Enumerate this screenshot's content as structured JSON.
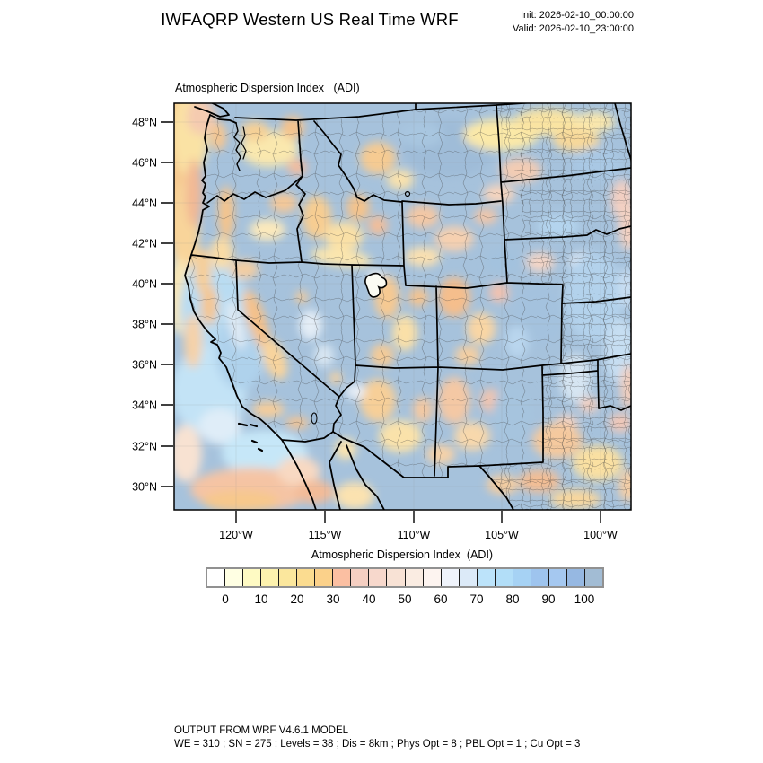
{
  "header": {
    "title": "IWFAQRP Western US Real Time WRF",
    "init_label": "Init: 2026-02-10_00:00:00",
    "valid_label": "Valid: 2026-02-10_23:00:00"
  },
  "map": {
    "subtitle": "Atmospheric Dispersion Index   (ADI)",
    "axes": {
      "lat": [
        "48°N",
        "46°N",
        "44°N",
        "42°N",
        "40°N",
        "38°N",
        "36°N",
        "34°N",
        "32°N",
        "30°N"
      ],
      "lon": [
        "120°W",
        "115°W",
        "110°W",
        "105°W",
        "100°W"
      ]
    }
  },
  "colorbar": {
    "title": "Atmospheric Dispersion Index  (ADI)",
    "labels": [
      "0",
      "10",
      "20",
      "30",
      "40",
      "50",
      "60",
      "70",
      "80",
      "90",
      "100"
    ],
    "colors": [
      "#FFFFFF",
      "#FFFFE3",
      "#FEFAC3",
      "#FDF2AE",
      "#FBE79D",
      "#FBDC90",
      "#FBD18A",
      "#FBBFA2",
      "#F5CFC2",
      "#F7D8CC",
      "#F8E2D5",
      "#FAECE2",
      "#FDF4F0",
      "#EFF3FB",
      "#DCEAF8",
      "#BCE3FA",
      "#B2DEF8",
      "#A6D2F4",
      "#9EC4EE",
      "#A5C8F0",
      "#96B8E2",
      "#A2BCD4"
    ]
  },
  "footer": {
    "line1": "OUTPUT FROM WRF V4.6.1 MODEL",
    "line2": "WE = 310 ; SN = 275 ; Levels = 38 ; Dis = 8km ; Phys Opt = 8 ; PBL Opt = 1 ; Cu Opt = 3"
  },
  "field_colors": {
    "land_base": "#A6C2DC",
    "ocean_light": "#C3E3F6",
    "low_adi_orange": "#F7CC90",
    "mid_pink": "#F3CCBE",
    "pale_yellow": "#FBE9AC"
  }
}
